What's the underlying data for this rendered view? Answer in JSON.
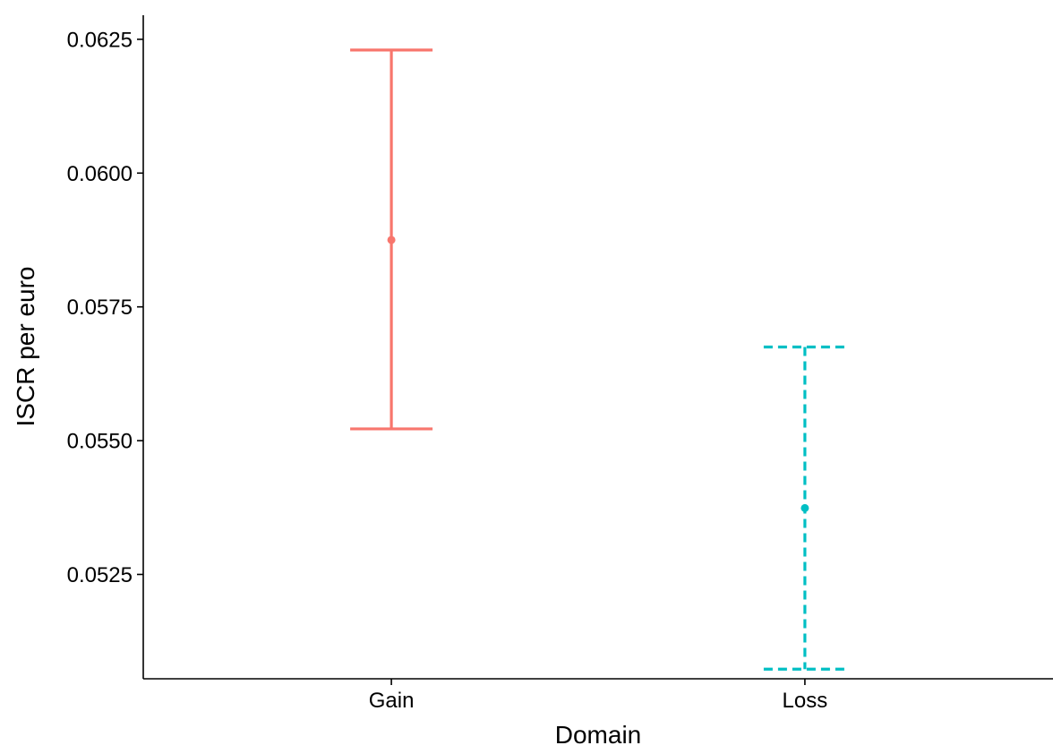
{
  "chart_data": {
    "type": "errorbar",
    "categories": [
      "Gain",
      "Loss"
    ],
    "series": [
      {
        "category": "Gain",
        "mean": 0.05875,
        "lower": 0.05522,
        "upper": 0.0623,
        "color": "#F8766D",
        "linetype": "solid"
      },
      {
        "category": "Loss",
        "mean": 0.05374,
        "lower": 0.05073,
        "upper": 0.05675,
        "color": "#00BFC4",
        "linetype": "dashed"
      }
    ],
    "xlabel": "Domain",
    "ylabel": "ISCR per euro",
    "ylim": [
      0.05055,
      0.06295
    ],
    "yticks": [
      0.0525,
      0.055,
      0.0575,
      0.06,
      0.0625
    ],
    "ytick_labels": [
      "0.0525",
      "0.0550",
      "0.0575",
      "0.0600",
      "0.0625"
    ],
    "grid": false,
    "legend": "none"
  }
}
